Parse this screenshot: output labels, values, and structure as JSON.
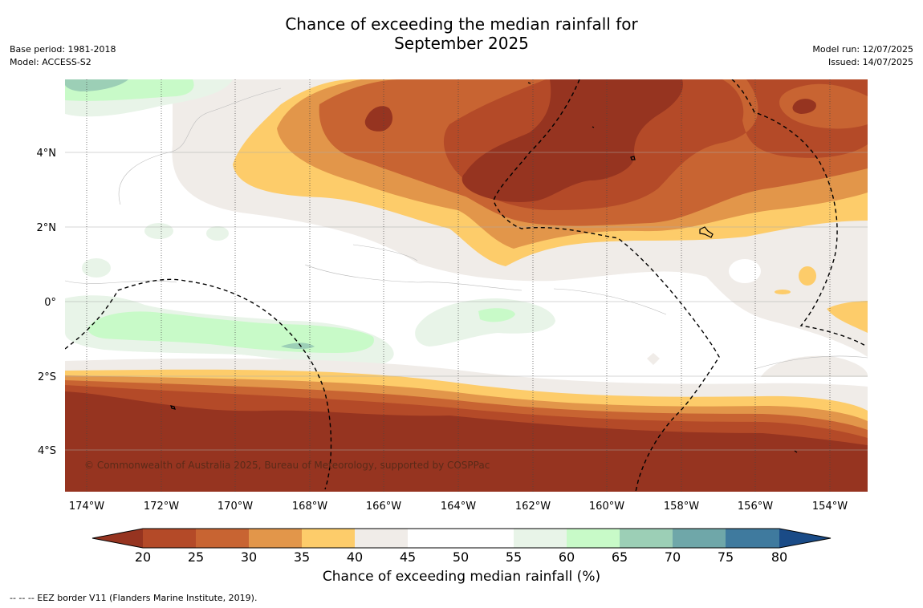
{
  "title": {
    "line1": "Chance of exceeding the median rainfall for",
    "line2": "September 2025"
  },
  "meta_left": {
    "base_period": "Base period: 1981-2018",
    "model": "Model: ACCESS-S2"
  },
  "meta_right": {
    "model_run": "Model run: 12/07/2025",
    "issued": "Issued: 14/07/2025"
  },
  "copyright": "© Commonwealth of Australia 2025, Bureau of Meteorology, supported by COSPPac",
  "footnote": "-- -- -- EEZ border V11 (Flanders Marine Institute, 2019).",
  "axes": {
    "x_ticks": [
      "174°W",
      "172°W",
      "170°W",
      "168°W",
      "166°W",
      "164°W",
      "162°W",
      "160°W",
      "158°W",
      "156°W",
      "154°W"
    ],
    "y_ticks": [
      "4°N",
      "2°N",
      "0°",
      "2°S",
      "4°S"
    ]
  },
  "colorbar": {
    "label": "Chance of exceeding median rainfall (%)",
    "ticks": [
      "20",
      "25",
      "30",
      "35",
      "40",
      "45",
      "50",
      "55",
      "60",
      "65",
      "70",
      "75",
      "80"
    ],
    "colors": [
      "#963420",
      "#b44a28",
      "#c86432",
      "#e2964a",
      "#fdcc6a",
      "#f0ece8",
      "#ffffff",
      "#ffffff",
      "#e8f4e8",
      "#c8fac8",
      "#9ccfb6",
      "#6fa7a9",
      "#3f7a9e",
      "#1a4b87"
    ]
  },
  "legend_colors": {
    "land_outline": "#000000",
    "eez_border": "#000000",
    "gridline": "#aaaaaa"
  }
}
